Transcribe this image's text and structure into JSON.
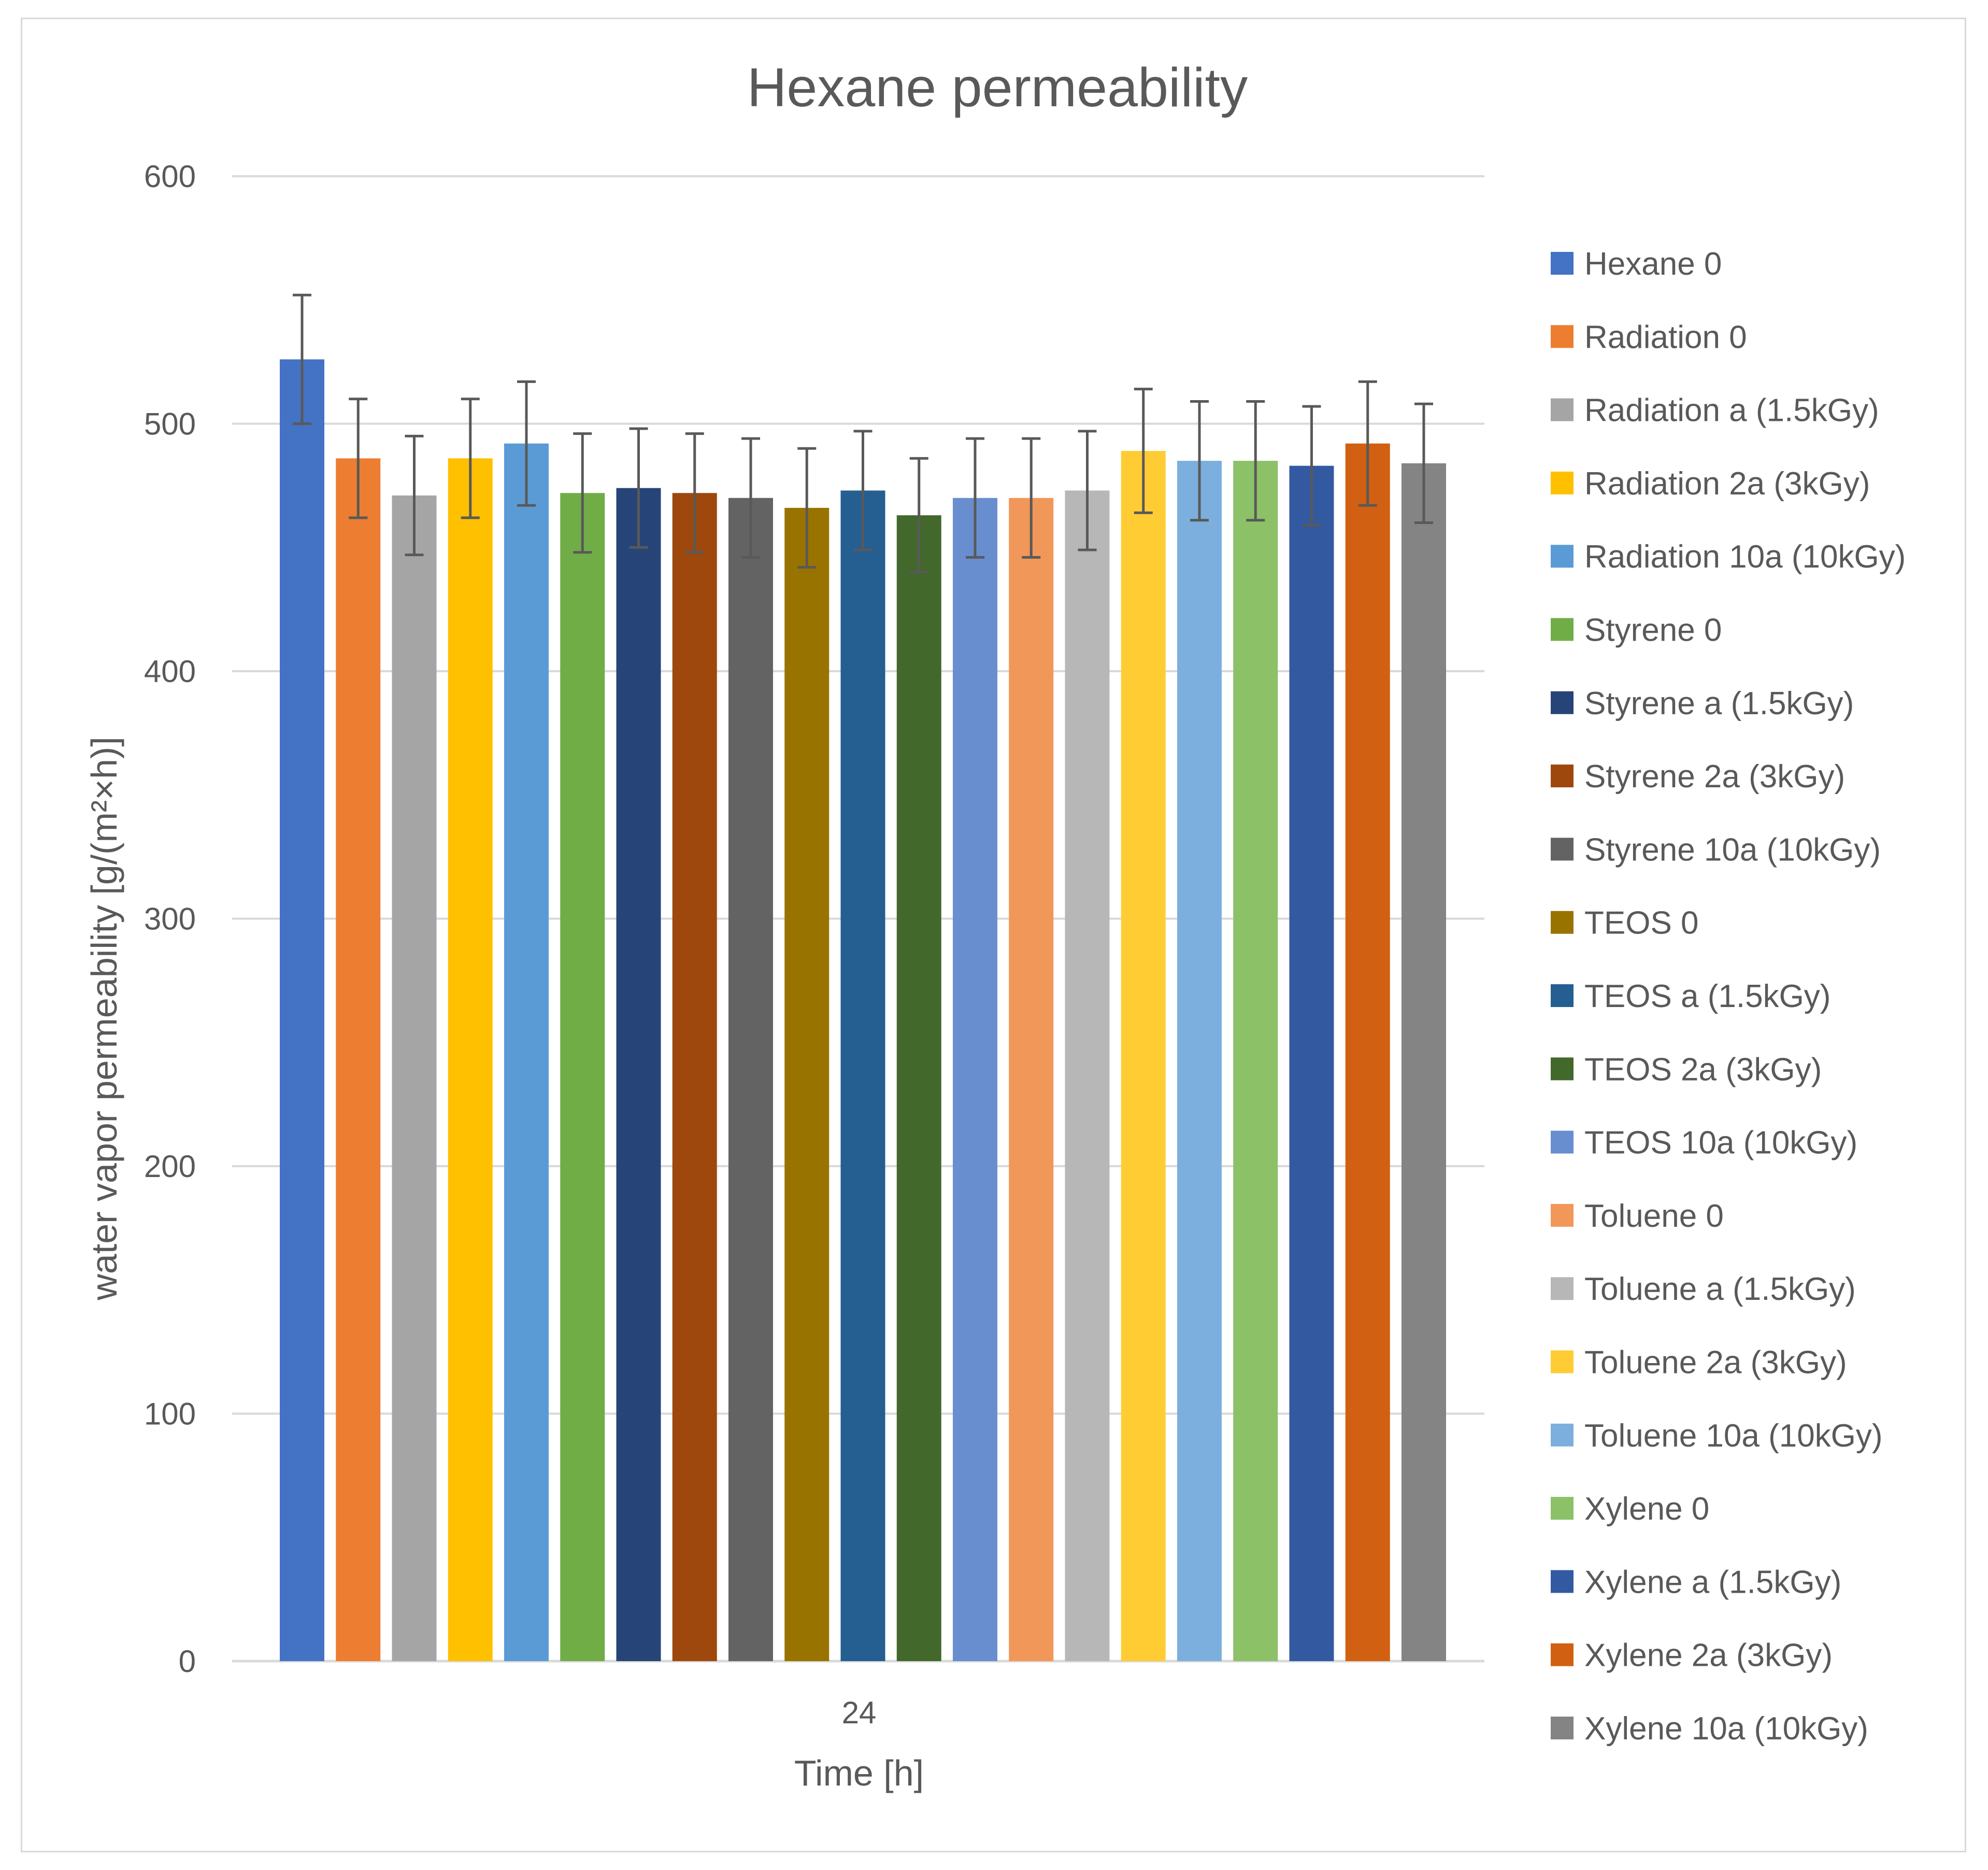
{
  "chart_data": {
    "type": "bar",
    "title": "Hexane permeability",
    "xlabel": "Time [h]",
    "ylabel": "water vapor permeability [g/(m²×h)]",
    "categories": [
      "24"
    ],
    "ylim": [
      0,
      600
    ],
    "yticks": [
      "0",
      "100",
      "200",
      "300",
      "400",
      "500",
      "600"
    ],
    "grid": true,
    "legend_position": "right",
    "series": [
      {
        "name": "Hexane 0",
        "value": 526,
        "error": 26,
        "color": "#4472C4"
      },
      {
        "name": "Radiation 0",
        "value": 486,
        "error": 24,
        "color": "#ED7D31"
      },
      {
        "name": "Radiation a (1.5kGy)",
        "value": 471,
        "error": 24,
        "color": "#A5A5A5"
      },
      {
        "name": "Radiation 2a (3kGy)",
        "value": 486,
        "error": 24,
        "color": "#FFC000"
      },
      {
        "name": "Radiation 10a (10kGy)",
        "value": 492,
        "error": 25,
        "color": "#5B9BD5"
      },
      {
        "name": "Styrene 0",
        "value": 472,
        "error": 24,
        "color": "#70AD47"
      },
      {
        "name": "Styrene a (1.5kGy)",
        "value": 474,
        "error": 24,
        "color": "#264478"
      },
      {
        "name": "Styrene 2a (3kGy)",
        "value": 472,
        "error": 24,
        "color": "#9E480E"
      },
      {
        "name": "Styrene 10a (10kGy)",
        "value": 470,
        "error": 24,
        "color": "#636363"
      },
      {
        "name": "TEOS 0",
        "value": 466,
        "error": 24,
        "color": "#997300"
      },
      {
        "name": "TEOS a (1.5kGy)",
        "value": 473,
        "error": 24,
        "color": "#255E91"
      },
      {
        "name": "TEOS 2a (3kGy)",
        "value": 463,
        "error": 23,
        "color": "#43682B"
      },
      {
        "name": "TEOS 10a (10kGy)",
        "value": 470,
        "error": 24,
        "color": "#698ED0"
      },
      {
        "name": "Toluene 0",
        "value": 470,
        "error": 24,
        "color": "#F1975A"
      },
      {
        "name": "Toluene a (1.5kGy)",
        "value": 473,
        "error": 24,
        "color": "#B7B7B7"
      },
      {
        "name": "Toluene 2a (3kGy)",
        "value": 489,
        "error": 25,
        "color": "#FFCD33"
      },
      {
        "name": "Toluene 10a (10kGy)",
        "value": 485,
        "error": 24,
        "color": "#7CAFDD"
      },
      {
        "name": "Xylene 0",
        "value": 485,
        "error": 24,
        "color": "#8CC168"
      },
      {
        "name": "Xylene a (1.5kGy)",
        "value": 483,
        "error": 24,
        "color": "#335AA1"
      },
      {
        "name": "Xylene 2a (3kGy)",
        "value": 492,
        "error": 25,
        "color": "#D26012"
      },
      {
        "name": "Xylene 10a (10kGy)",
        "value": 484,
        "error": 24,
        "color": "#848484"
      }
    ]
  }
}
